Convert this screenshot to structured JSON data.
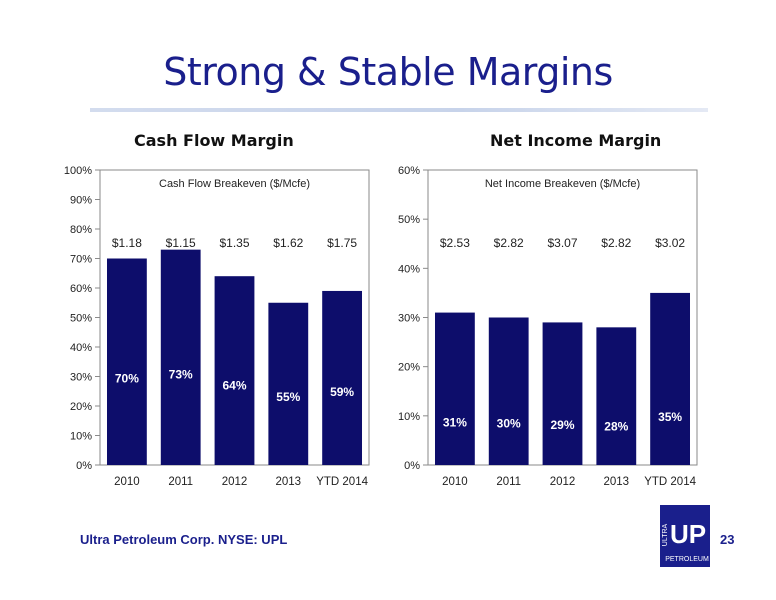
{
  "slide": {
    "title": "Strong & Stable Margins",
    "footer": "Ultra Petroleum Corp. NYSE: UPL",
    "page_number": "23",
    "logo": {
      "top_text": "ULTRA",
      "monogram": "UP",
      "bottom_text": "PETROLEUM"
    }
  },
  "colors": {
    "title": "#1a1f8c",
    "bar": "#0d0d6b",
    "rule": "#c7d3ea"
  },
  "chart_data": [
    {
      "type": "bar",
      "title": "Cash Flow Margin",
      "categories": [
        "2010",
        "2011",
        "2012",
        "2013",
        "YTD 2014"
      ],
      "values": [
        70,
        73,
        64,
        55,
        59
      ],
      "value_labels": [
        "70%",
        "73%",
        "64%",
        "55%",
        "59%"
      ],
      "breakeven_title": "Cash Flow Breakeven ($/Mcfe)",
      "breakeven_labels": [
        "$1.18",
        "$1.15",
        "$1.35",
        "$1.62",
        "$1.75"
      ],
      "ylim": [
        0,
        100
      ],
      "yticks": [
        "0%",
        "10%",
        "20%",
        "30%",
        "40%",
        "50%",
        "60%",
        "70%",
        "80%",
        "90%",
        "100%"
      ],
      "grid": false
    },
    {
      "type": "bar",
      "title": "Net Income Margin",
      "categories": [
        "2010",
        "2011",
        "2012",
        "2013",
        "YTD 2014"
      ],
      "values": [
        31,
        30,
        29,
        28,
        35
      ],
      "value_labels": [
        "31%",
        "30%",
        "29%",
        "28%",
        "35%"
      ],
      "breakeven_title": "Net Income Breakeven ($/Mcfe)",
      "breakeven_labels": [
        "$2.53",
        "$2.82",
        "$3.07",
        "$2.82",
        "$3.02"
      ],
      "ylim": [
        0,
        60
      ],
      "yticks": [
        "0%",
        "10%",
        "20%",
        "30%",
        "40%",
        "50%",
        "60%"
      ],
      "grid": false
    }
  ]
}
